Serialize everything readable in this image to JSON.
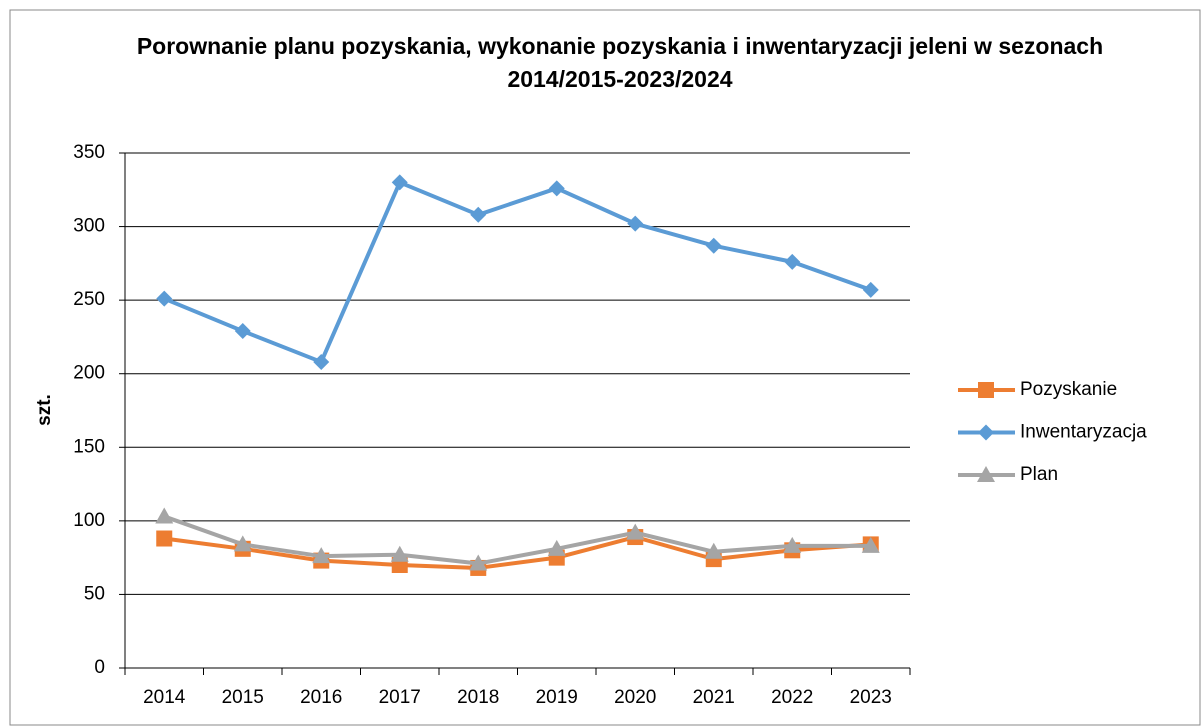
{
  "chart_data": {
    "type": "line",
    "title": "Porownanie planu pozyskania, wykonanie pozyskania i inwentaryzacji jeleni w sezonach 2014/2015-2023/2024",
    "ylabel": "szt.",
    "categories": [
      "2014",
      "2015",
      "2016",
      "2017",
      "2018",
      "2019",
      "2020",
      "2021",
      "2022",
      "2023"
    ],
    "series": [
      {
        "name": "Pozyskanie",
        "color": "#ed7d31",
        "marker": "square",
        "values": [
          88,
          81,
          73,
          70,
          68,
          75,
          89,
          74,
          80,
          84
        ]
      },
      {
        "name": "Inwentaryzacja",
        "color": "#5b9bd5",
        "marker": "diamond",
        "values": [
          251,
          229,
          208,
          330,
          308,
          326,
          302,
          287,
          276,
          257
        ]
      },
      {
        "name": "Plan",
        "color": "#a5a5a5",
        "marker": "triangle",
        "values": [
          103,
          84,
          76,
          77,
          71,
          81,
          92,
          79,
          83,
          83
        ]
      }
    ],
    "ylim": [
      0,
      350
    ],
    "yticks": [
      0,
      50,
      100,
      150,
      200,
      250,
      300,
      350
    ],
    "grid": true,
    "legend": "right"
  }
}
